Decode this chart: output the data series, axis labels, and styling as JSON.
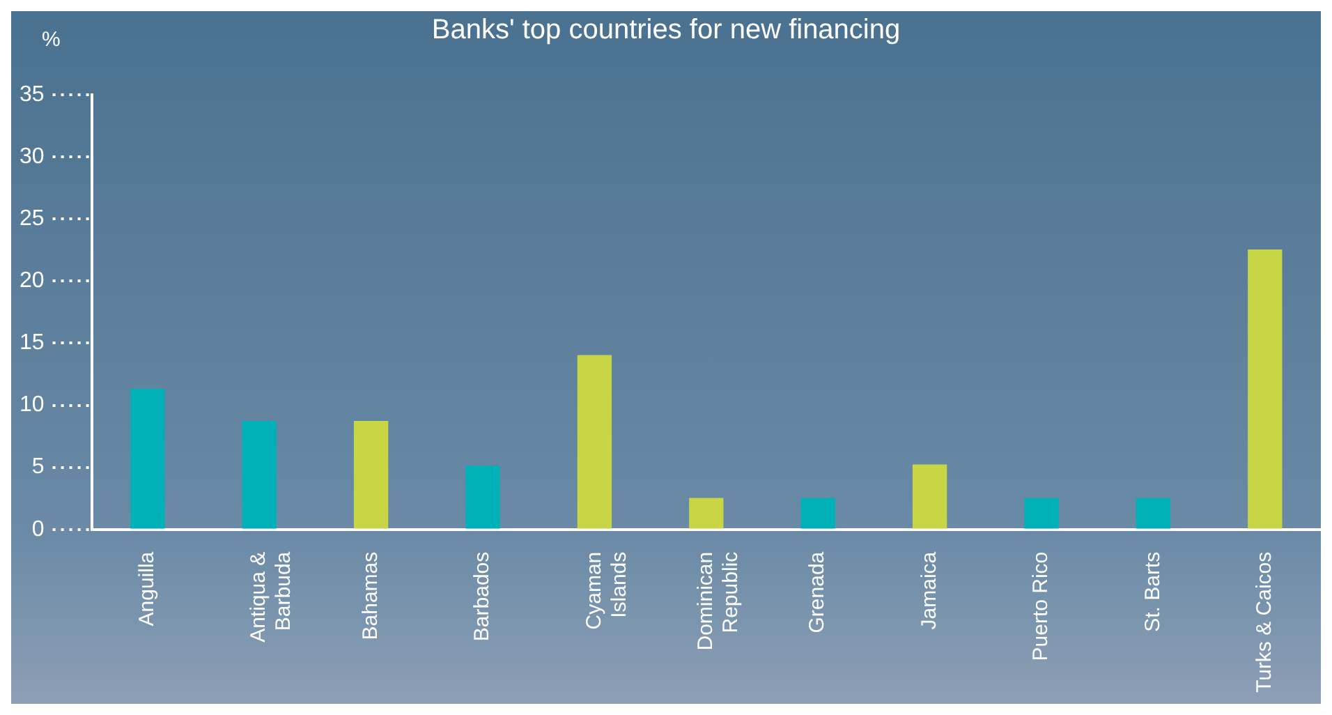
{
  "chart_data": {
    "type": "bar",
    "title": "Banks' top countries for new financing",
    "ylabel": "%",
    "categories": [
      "Anguilla",
      "Antiqua &\nBarbuda",
      "Bahamas",
      "Barbados",
      "Cyaman\nIslands",
      "Dominican\nRepublic",
      "Grenada",
      "Jamaica",
      "Puerto Rico",
      "St. Barts",
      "Turks & Caicos"
    ],
    "values": [
      11.3,
      8.7,
      8.7,
      5.1,
      14.0,
      2.5,
      2.5,
      5.2,
      2.5,
      2.5,
      22.5
    ],
    "colors": [
      "#00b2b8",
      "#00b2b8",
      "#c8d645",
      "#00b2b8",
      "#c8d645",
      "#c8d645",
      "#00b2b8",
      "#c8d645",
      "#00b2b8",
      "#00b2b8",
      "#c8d645"
    ],
    "ylim": [
      0,
      35
    ],
    "yticks": [
      0,
      5,
      10,
      15,
      20,
      25,
      30,
      35
    ]
  }
}
